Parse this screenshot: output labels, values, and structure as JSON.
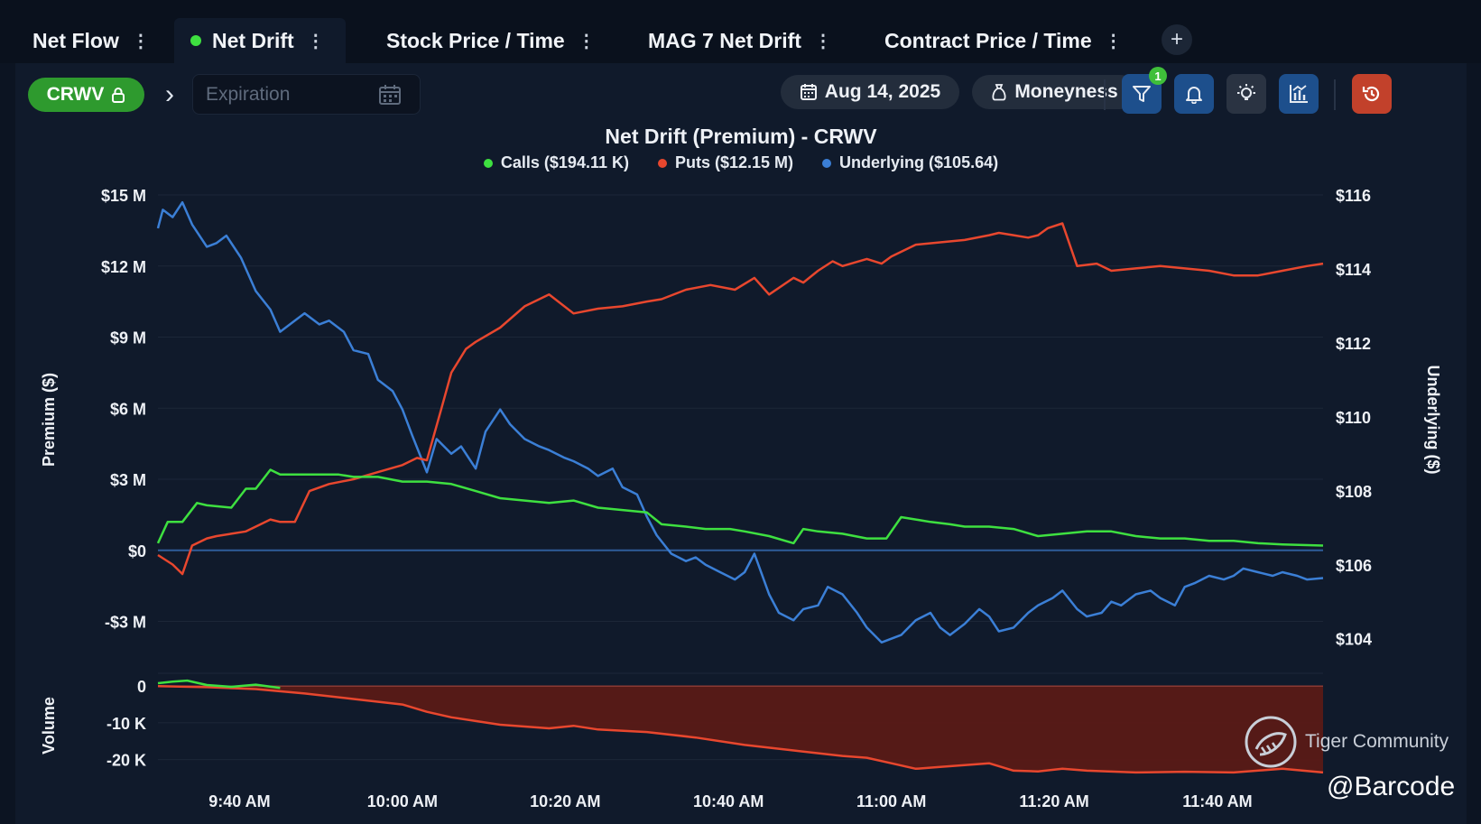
{
  "tabs": [
    {
      "label": "Net Flow",
      "active": false
    },
    {
      "label": "Net Drift",
      "active": true
    },
    {
      "label": "Stock Price / Time",
      "active": false
    },
    {
      "label": "MAG 7 Net Drift",
      "active": false
    },
    {
      "label": "Contract Price / Time",
      "active": false
    }
  ],
  "tab_add_label": "+",
  "toolbar": {
    "ticker": "CRWV",
    "expiration_placeholder": "Expiration",
    "date": "Aug 14, 2025",
    "moneyness": "Moneyness",
    "filter_badge": "1"
  },
  "watermark": {
    "community": "Tiger Community",
    "handle": "@Barcode"
  },
  "colors": {
    "calls": "#3ee040",
    "puts": "#e8472e",
    "underlying": "#3b7fd6",
    "bg": "#101a2b",
    "volume_fill": "#5a1a16"
  },
  "chart_data": {
    "type": "line",
    "title": "Net Drift (Premium) - CRWV",
    "legend": [
      {
        "label": "Calls ($194.11 K)",
        "color": "#3ee040"
      },
      {
        "label": "Puts ($12.15 M)",
        "color": "#e8472e"
      },
      {
        "label": "Underlying ($105.64)",
        "color": "#3b7fd6"
      }
    ],
    "ylabel_left": "Premium ($)",
    "ylabel_right": "Underlying ($)",
    "ylabel_volume": "Volume",
    "x_ticks": [
      {
        "t": 9.667,
        "label": "9:40 AM"
      },
      {
        "t": 10.0,
        "label": "10:00 AM"
      },
      {
        "t": 10.333,
        "label": "10:20 AM"
      },
      {
        "t": 10.667,
        "label": "10:40 AM"
      },
      {
        "t": 11.0,
        "label": "11:00 AM"
      },
      {
        "t": 11.333,
        "label": "11:20 AM"
      },
      {
        "t": 11.667,
        "label": "11:40 AM"
      }
    ],
    "xlim": [
      9.5,
      11.883
    ],
    "left_axis": {
      "ylim": [
        -4.2,
        15.0
      ],
      "ticks": [
        15,
        12,
        9,
        6,
        3,
        0,
        -3
      ],
      "tick_labels": [
        "$15 M",
        "$12 M",
        "$9 M",
        "$6 M",
        "$3 M",
        "$0",
        "-$3 M"
      ]
    },
    "right_axis": {
      "ylim": [
        103.7,
        116.0
      ],
      "ticks": [
        116,
        114,
        112,
        110,
        108,
        106,
        104
      ],
      "tick_labels": [
        "$116",
        "$114",
        "$112",
        "$110",
        "$108",
        "$106",
        "$104"
      ]
    },
    "volume_axis": {
      "ylim": [
        -25,
        3
      ],
      "ticks": [
        0,
        -10,
        -20
      ],
      "tick_labels": [
        "0",
        "-10 K",
        "-20 K"
      ]
    },
    "series": [
      {
        "name": "Calls",
        "axis": "left",
        "unit": "$M",
        "x": [
          9.5,
          9.52,
          9.55,
          9.58,
          9.6,
          9.65,
          9.68,
          9.7,
          9.73,
          9.75,
          9.78,
          9.8,
          9.83,
          9.87,
          9.9,
          9.95,
          10.0,
          10.05,
          10.1,
          10.15,
          10.2,
          10.25,
          10.3,
          10.35,
          10.4,
          10.45,
          10.5,
          10.53,
          10.58,
          10.62,
          10.67,
          10.7,
          10.75,
          10.8,
          10.82,
          10.85,
          10.9,
          10.95,
          10.99,
          11.02,
          11.05,
          11.08,
          11.12,
          11.15,
          11.2,
          11.25,
          11.3,
          11.35,
          11.4,
          11.45,
          11.5,
          11.55,
          11.6,
          11.65,
          11.7,
          11.75,
          11.8,
          11.883
        ],
        "y": [
          0.3,
          1.2,
          1.2,
          2.0,
          1.9,
          1.8,
          2.6,
          2.6,
          3.4,
          3.2,
          3.2,
          3.2,
          3.2,
          3.2,
          3.1,
          3.1,
          2.9,
          2.9,
          2.8,
          2.5,
          2.2,
          2.1,
          2.0,
          2.1,
          1.8,
          1.7,
          1.6,
          1.1,
          1.0,
          0.9,
          0.9,
          0.8,
          0.6,
          0.3,
          0.9,
          0.8,
          0.7,
          0.5,
          0.5,
          1.4,
          1.3,
          1.2,
          1.1,
          1.0,
          1.0,
          0.9,
          0.6,
          0.7,
          0.8,
          0.8,
          0.6,
          0.5,
          0.5,
          0.4,
          0.4,
          0.3,
          0.25,
          0.2
        ]
      },
      {
        "name": "Puts",
        "axis": "left",
        "unit": "$M",
        "x": [
          9.5,
          9.53,
          9.55,
          9.57,
          9.6,
          9.62,
          9.65,
          9.68,
          9.7,
          9.73,
          9.75,
          9.78,
          9.81,
          9.85,
          9.9,
          9.95,
          10.0,
          10.03,
          10.05,
          10.08,
          10.1,
          10.13,
          10.15,
          10.2,
          10.25,
          10.3,
          10.35,
          10.4,
          10.45,
          10.5,
          10.53,
          10.58,
          10.63,
          10.68,
          10.72,
          10.75,
          10.8,
          10.82,
          10.85,
          10.88,
          10.9,
          10.95,
          10.98,
          11.0,
          11.05,
          11.1,
          11.15,
          11.2,
          11.22,
          11.25,
          11.28,
          11.3,
          11.32,
          11.35,
          11.38,
          11.42,
          11.45,
          11.5,
          11.55,
          11.6,
          11.65,
          11.7,
          11.75,
          11.8,
          11.85,
          11.883
        ],
        "y": [
          -0.2,
          -0.6,
          -1.0,
          0.2,
          0.5,
          0.6,
          0.7,
          0.8,
          1.0,
          1.3,
          1.2,
          1.2,
          2.5,
          2.8,
          3.0,
          3.3,
          3.6,
          3.9,
          3.8,
          6.0,
          7.5,
          8.5,
          8.8,
          9.4,
          10.3,
          10.8,
          10.0,
          10.2,
          10.3,
          10.5,
          10.6,
          11.0,
          11.2,
          11.0,
          11.5,
          10.8,
          11.5,
          11.3,
          11.8,
          12.2,
          12.0,
          12.3,
          12.1,
          12.4,
          12.9,
          13.0,
          13.1,
          13.3,
          13.4,
          13.3,
          13.2,
          13.3,
          13.6,
          13.8,
          12.0,
          12.1,
          11.8,
          11.9,
          12.0,
          11.9,
          11.8,
          11.6,
          11.6,
          11.8,
          12.0,
          12.1
        ]
      },
      {
        "name": "Underlying",
        "axis": "right",
        "unit": "$",
        "x": [
          9.5,
          9.51,
          9.53,
          9.55,
          9.57,
          9.6,
          9.62,
          9.64,
          9.67,
          9.7,
          9.73,
          9.75,
          9.78,
          9.8,
          9.83,
          9.85,
          9.88,
          9.9,
          9.93,
          9.95,
          9.98,
          10.0,
          10.02,
          10.05,
          10.07,
          10.1,
          10.12,
          10.15,
          10.17,
          10.2,
          10.22,
          10.25,
          10.28,
          10.3,
          10.33,
          10.35,
          10.38,
          10.4,
          10.43,
          10.45,
          10.48,
          10.5,
          10.52,
          10.55,
          10.58,
          10.6,
          10.62,
          10.65,
          10.68,
          10.7,
          10.72,
          10.75,
          10.77,
          10.8,
          10.82,
          10.85,
          10.87,
          10.9,
          10.93,
          10.95,
          10.98,
          11.0,
          11.02,
          11.05,
          11.08,
          11.1,
          11.12,
          11.15,
          11.18,
          11.2,
          11.22,
          11.25,
          11.28,
          11.3,
          11.33,
          11.35,
          11.38,
          11.4,
          11.43,
          11.45,
          11.47,
          11.5,
          11.53,
          11.55,
          11.58,
          11.6,
          11.62,
          11.65,
          11.68,
          11.7,
          11.72,
          11.75,
          11.78,
          11.8,
          11.83,
          11.85,
          11.883
        ],
        "y": [
          115.1,
          115.6,
          115.4,
          115.8,
          115.2,
          114.6,
          114.7,
          114.9,
          114.3,
          113.4,
          112.9,
          112.3,
          112.6,
          112.8,
          112.5,
          112.6,
          112.3,
          111.8,
          111.7,
          111.0,
          110.7,
          110.2,
          109.5,
          108.5,
          109.4,
          109.0,
          109.2,
          108.6,
          109.6,
          110.2,
          109.8,
          109.4,
          109.2,
          109.1,
          108.9,
          108.8,
          108.6,
          108.4,
          108.6,
          108.1,
          107.9,
          107.3,
          106.8,
          106.3,
          106.1,
          106.2,
          106.0,
          105.8,
          105.6,
          105.8,
          106.3,
          105.2,
          104.7,
          104.5,
          104.8,
          104.9,
          105.4,
          105.2,
          104.7,
          104.3,
          103.9,
          104.0,
          104.1,
          104.5,
          104.7,
          104.3,
          104.1,
          104.4,
          104.8,
          104.6,
          104.2,
          104.3,
          104.7,
          104.9,
          105.1,
          105.3,
          104.8,
          104.6,
          104.7,
          105.0,
          104.9,
          105.2,
          105.3,
          105.1,
          104.9,
          105.4,
          105.5,
          105.7,
          105.6,
          105.7,
          105.9,
          105.8,
          105.7,
          105.8,
          105.7,
          105.6,
          105.64
        ]
      },
      {
        "name": "Volume Calls",
        "axis": "volume",
        "unit": "K",
        "x": [
          9.5,
          9.53,
          9.56,
          9.6,
          9.65,
          9.7,
          9.75
        ],
        "y": [
          0.8,
          1.2,
          1.5,
          0.3,
          -0.2,
          0.4,
          -0.5
        ]
      },
      {
        "name": "Volume Puts",
        "axis": "volume",
        "unit": "K",
        "x": [
          9.5,
          9.6,
          9.7,
          9.8,
          9.9,
          10.0,
          10.05,
          10.1,
          10.2,
          10.3,
          10.35,
          10.4,
          10.5,
          10.6,
          10.7,
          10.8,
          10.9,
          10.95,
          11.0,
          11.05,
          11.1,
          11.2,
          11.25,
          11.3,
          11.35,
          11.4,
          11.5,
          11.6,
          11.7,
          11.8,
          11.883
        ],
        "y": [
          0,
          -0.3,
          -0.8,
          -2.0,
          -3.5,
          -5.0,
          -7.0,
          -8.5,
          -10.5,
          -11.5,
          -10.8,
          -11.8,
          -12.5,
          -14.0,
          -16.0,
          -17.5,
          -19.0,
          -19.5,
          -21.0,
          -22.5,
          -22.0,
          -21.0,
          -23.0,
          -23.2,
          -22.5,
          -23.0,
          -23.5,
          -23.3,
          -23.5,
          -22.5,
          -23.5
        ]
      }
    ]
  }
}
